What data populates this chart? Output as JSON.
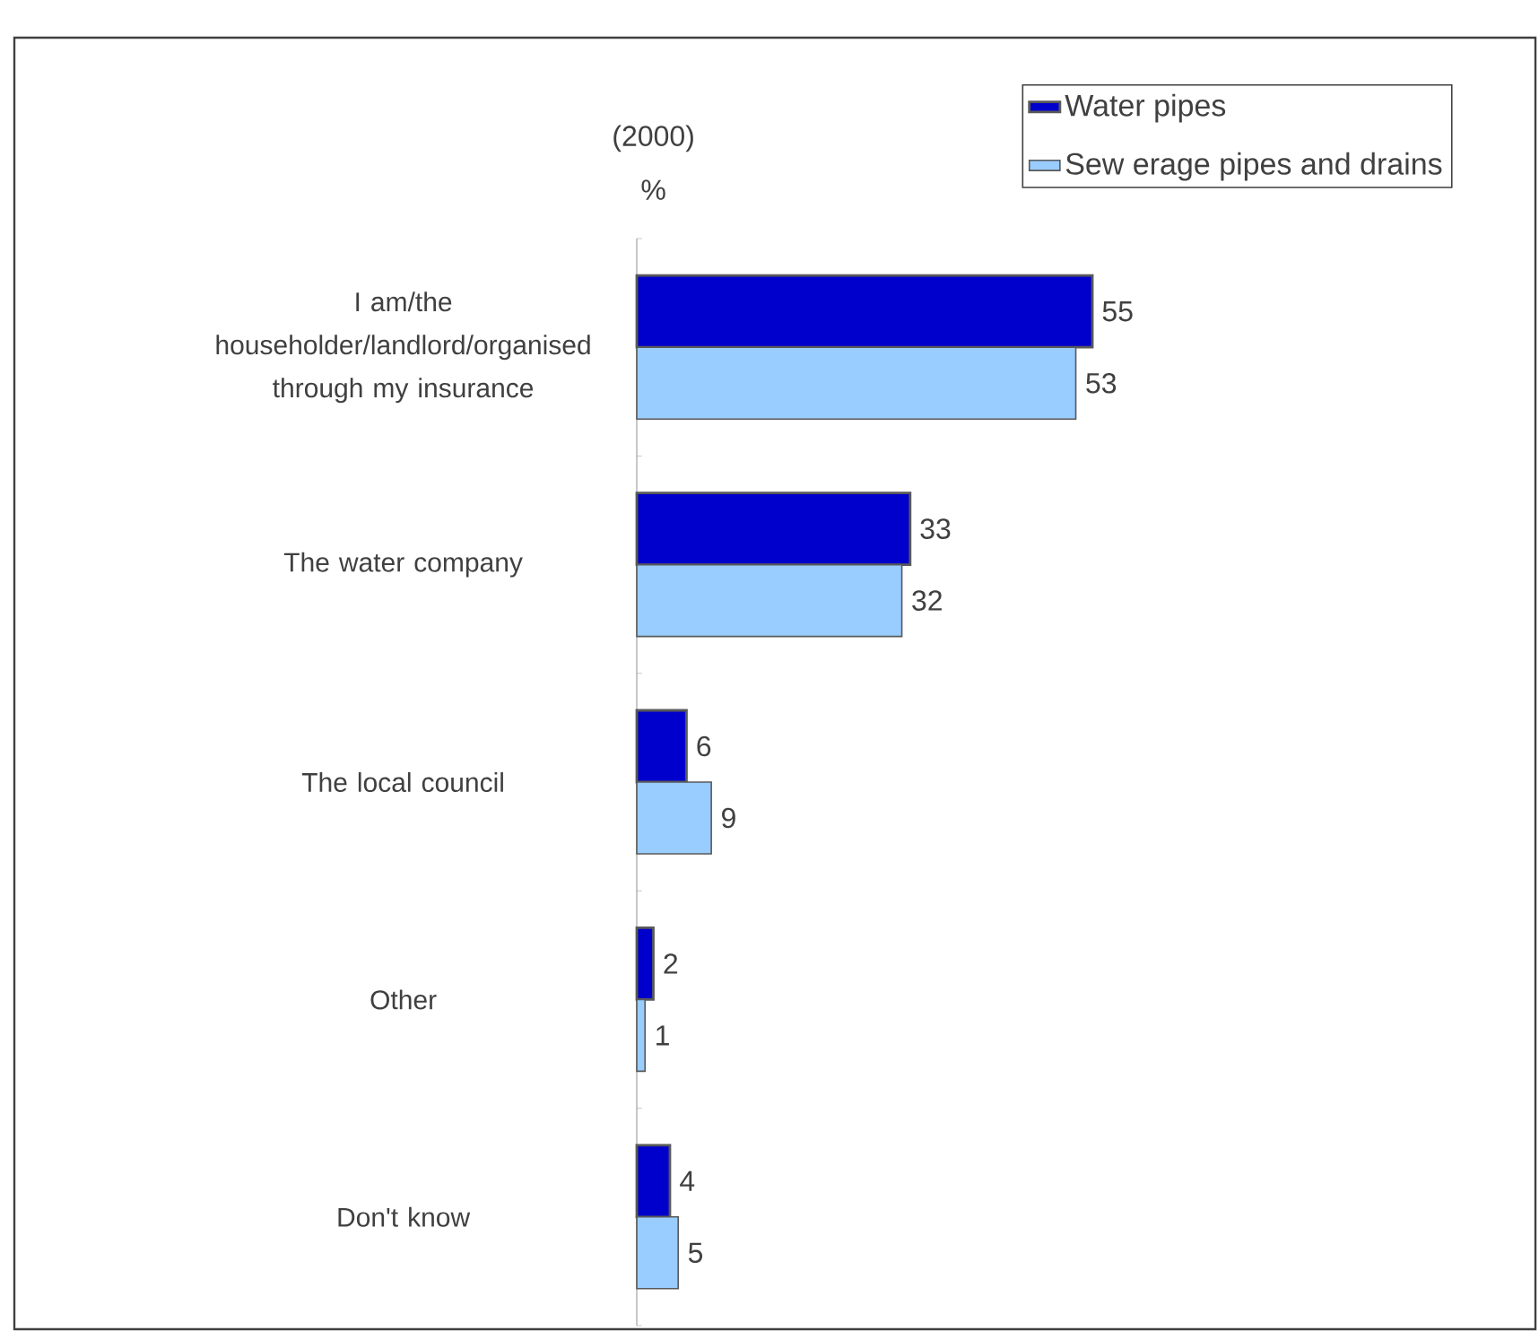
{
  "chart_data": {
    "type": "bar",
    "orientation": "horizontal",
    "ylabel": "(2000) %",
    "categories": [
      "I am/the householder/landlord/organised through my insurance",
      "The water company",
      "The local council",
      "Other",
      "Don't know"
    ],
    "series": [
      {
        "name": "Water pipes",
        "color": "#0000cc",
        "values": [
          55,
          33,
          6,
          2,
          4
        ]
      },
      {
        "name": "Sew erage pipes and drains",
        "color": "#99ccff",
        "values": [
          53,
          32,
          9,
          1,
          5
        ]
      }
    ],
    "data_labels": true,
    "legend": "top right"
  }
}
